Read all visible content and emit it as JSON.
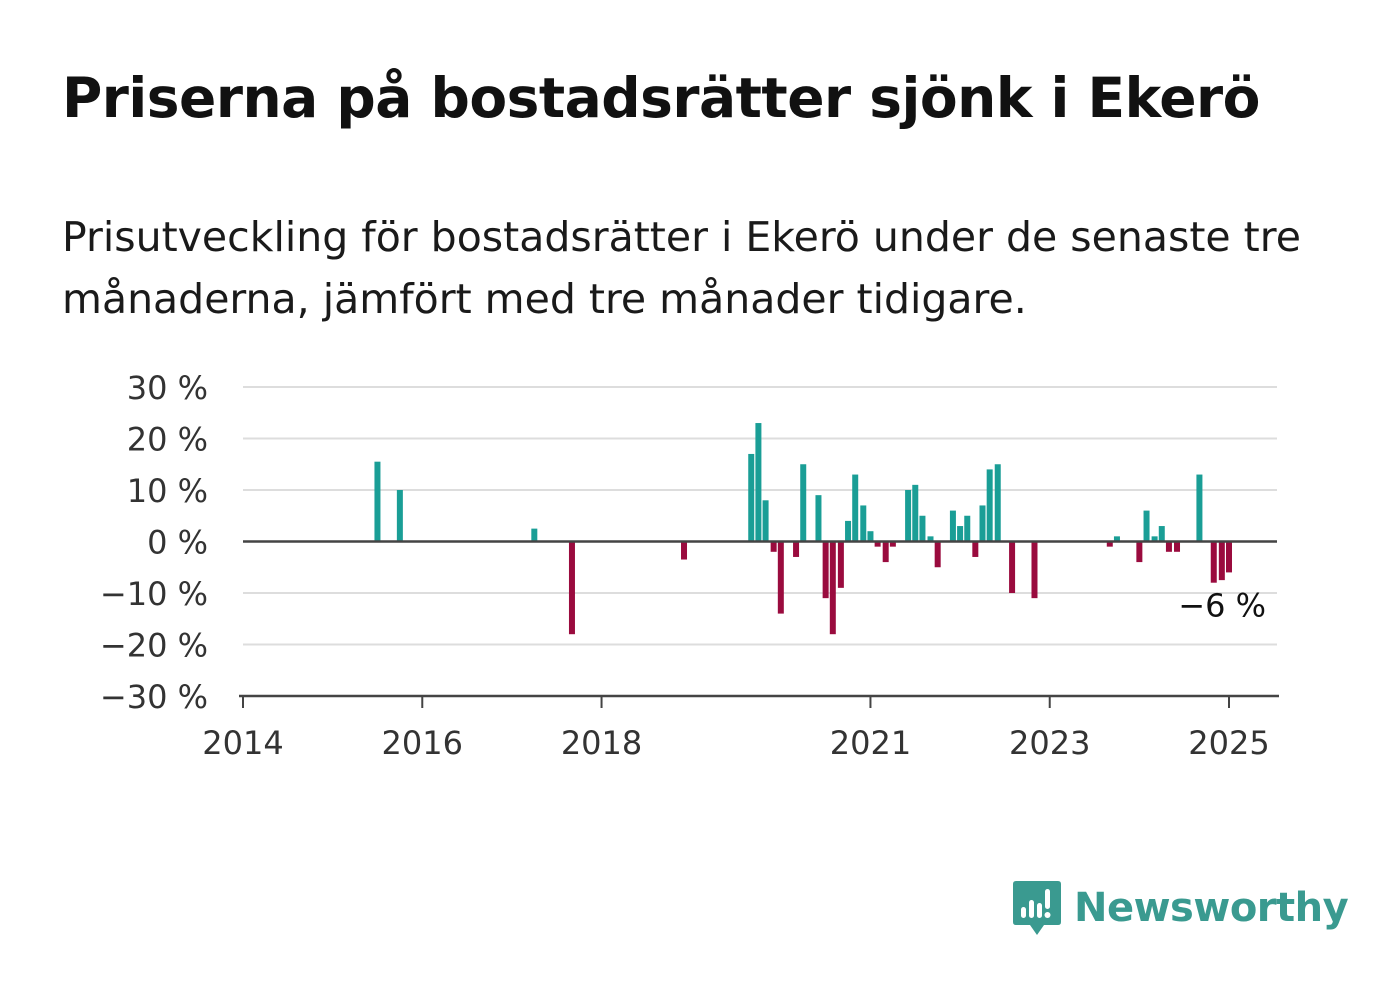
{
  "title": "Priserna på bostadsrätter sjönk i Ekerö",
  "subtitle": "Prisutveckling för bostadsrätter i Ekerö under de senaste tre månaderna, jämfört med tre månader tidigare.",
  "brand": {
    "name": "Newsworthy",
    "icon": "newsworthy-logo-icon",
    "color": "#3a9a90"
  },
  "chart_data": {
    "type": "bar",
    "ylim": [
      -30,
      30
    ],
    "yticks": [
      30,
      20,
      10,
      0,
      -10,
      -20,
      -30
    ],
    "ytick_labels": [
      "30 %",
      "20 %",
      "10 %",
      "0 %",
      "−10 %",
      "−20 %",
      "−30 %"
    ],
    "xlim": [
      2014.0,
      2025.75
    ],
    "xticks": [
      2014,
      2016,
      2018,
      2021,
      2023,
      2025
    ],
    "xtick_labels": [
      "2014",
      "2016",
      "2018",
      "2021",
      "2023",
      "2025"
    ],
    "grid": true,
    "colors": {
      "positive": "#1a9e96",
      "negative": "#9a0b3e"
    },
    "annotation": {
      "text": "−6 %",
      "x": 2024.96,
      "y": -6
    },
    "x": [
      2015.5,
      2015.75,
      2017.25,
      2017.67,
      2018.92,
      2019.67,
      2019.75,
      2019.83,
      2019.92,
      2020.0,
      2020.17,
      2020.25,
      2020.42,
      2020.5,
      2020.58,
      2020.67,
      2020.75,
      2020.83,
      2020.92,
      2021.0,
      2021.08,
      2021.17,
      2021.25,
      2021.42,
      2021.5,
      2021.58,
      2021.67,
      2021.75,
      2021.92,
      2022.0,
      2022.08,
      2022.17,
      2022.25,
      2022.33,
      2022.42,
      2022.58,
      2022.83,
      2023.67,
      2023.75,
      2024.0,
      2024.08,
      2024.17,
      2024.25,
      2024.33,
      2024.42,
      2024.67,
      2024.83,
      2024.92,
      2025.0
    ],
    "values": [
      15.5,
      10,
      2.5,
      -18,
      -3.5,
      17,
      23,
      8,
      -2,
      -14,
      -3,
      15,
      9,
      -11,
      -18,
      -9,
      4,
      13,
      7,
      2,
      -1,
      -4,
      -1,
      10,
      11,
      5,
      1,
      -5,
      6,
      3,
      5,
      -3,
      7,
      14,
      15,
      -10,
      -11,
      -1,
      1,
      -4,
      6,
      1,
      3,
      -2,
      -2,
      13,
      -8,
      -7.5,
      -6
    ]
  }
}
